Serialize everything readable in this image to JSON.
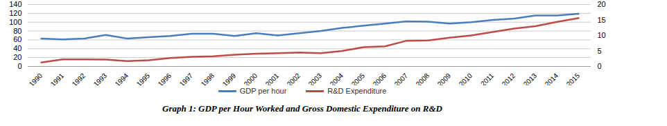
{
  "chart_data": {
    "type": "line",
    "title": "Graph 1: GDP per Hour Worked and Gross Domestic Expenditure on R&D",
    "categories": [
      "1990",
      "1991",
      "1992",
      "1993",
      "1994",
      "1995",
      "1996",
      "1997",
      "1998",
      "1999",
      "2000",
      "2001",
      "2002",
      "2003",
      "2004",
      "2005",
      "2006",
      "2007",
      "2008",
      "2009",
      "2010",
      "2011",
      "2012",
      "2013",
      "2014",
      "2015"
    ],
    "series": [
      {
        "name": "GDP per hour",
        "color": "#4a7ebb",
        "values": [
          63,
          61,
          63,
          71,
          63,
          66,
          69,
          74,
          74,
          69,
          75,
          70,
          75,
          80,
          87,
          92,
          97,
          102,
          101,
          97,
          100,
          105,
          108,
          115,
          115,
          119
        ]
      },
      {
        "name": "R&D Expenditure",
        "color": "#be4b48",
        "axis": "y2",
        "values": [
          1.3,
          2.3,
          2.3,
          2.2,
          1.7,
          2.0,
          2.7,
          3.1,
          3.3,
          3.8,
          4.1,
          4.3,
          4.5,
          4.3,
          5.0,
          6.2,
          6.5,
          8.3,
          8.4,
          9.3,
          10.0,
          11.1,
          12.2,
          13.0,
          14.4,
          15.6
        ]
      }
    ],
    "ylim": [
      0,
      140
    ],
    "yticks": [
      0,
      20,
      40,
      60,
      80,
      100,
      120,
      140
    ],
    "y2lim": [
      0,
      20
    ],
    "y2ticks": [
      0,
      5,
      10,
      15,
      20
    ],
    "grid": true,
    "legend": "bottom"
  }
}
